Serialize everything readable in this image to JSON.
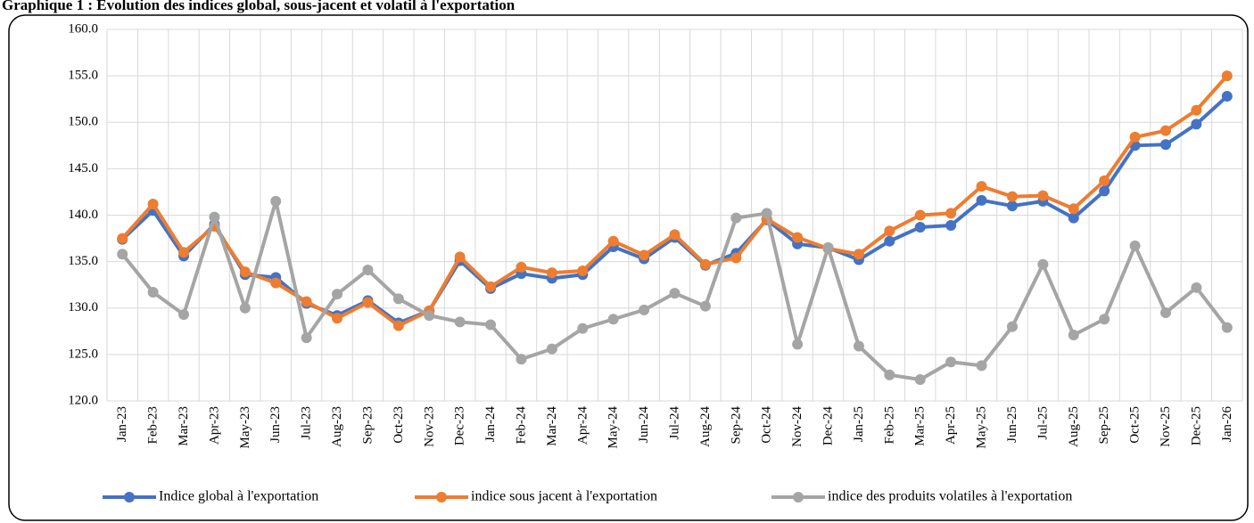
{
  "chart_data": {
    "type": "line",
    "title": "Graphique 1 : Evolution des indices global, sous-jacent et volatil à l'exportation",
    "categories": [
      "Jan-23",
      "Feb-23",
      "Mar-23",
      "Apr-23",
      "May-23",
      "Jun-23",
      "Jul-23",
      "Aug-23",
      "Sep-23",
      "Oct-23",
      "Nov-23",
      "Dec-23",
      "Jan-24",
      "Feb-24",
      "Mar-24",
      "Apr-24",
      "May-24",
      "Jun-24",
      "Jul-24",
      "Aug-24",
      "Sep-24",
      "Oct-24",
      "Nov-24",
      "Dec-24",
      "Jan-25",
      "Feb-25",
      "Mar-25",
      "Apr-25",
      "May-25",
      "Jun-25",
      "Jul-25",
      "Aug-25",
      "Sep-25",
      "Oct-25",
      "Nov-25",
      "Dec-25",
      "Jan-26"
    ],
    "series": [
      {
        "name": "Indice global à l'exportation",
        "color": "#4472c4",
        "values": [
          137.4,
          140.5,
          135.6,
          139.0,
          133.6,
          133.3,
          130.5,
          129.2,
          130.8,
          128.4,
          129.7,
          135.1,
          132.1,
          133.7,
          133.2,
          133.6,
          136.6,
          135.3,
          137.6,
          134.6,
          135.9,
          139.5,
          136.9,
          136.5,
          135.2,
          137.2,
          138.7,
          138.9,
          141.6,
          141.0,
          141.5,
          139.7,
          142.6,
          147.5,
          147.6,
          149.8,
          152.8
        ]
      },
      {
        "name": "indice sous jacent à l'exportation",
        "color": "#ed7d31",
        "values": [
          137.5,
          141.2,
          136.0,
          138.8,
          133.9,
          132.7,
          130.7,
          128.9,
          130.6,
          128.1,
          129.7,
          135.5,
          132.3,
          134.4,
          133.8,
          134.0,
          137.2,
          135.7,
          137.9,
          134.7,
          135.4,
          139.6,
          137.6,
          136.4,
          135.8,
          138.3,
          140.0,
          140.2,
          143.1,
          142.0,
          142.1,
          140.7,
          143.7,
          148.4,
          149.1,
          151.3,
          155.0
        ]
      },
      {
        "name": "indice des produits volatiles à l'exportation",
        "color": "#a5a5a5",
        "values": [
          135.8,
          131.7,
          129.3,
          139.8,
          130.0,
          141.5,
          126.8,
          131.5,
          134.1,
          131.0,
          129.2,
          128.5,
          128.2,
          124.5,
          125.6,
          127.8,
          128.8,
          129.8,
          131.6,
          130.2,
          139.7,
          140.2,
          126.1,
          136.5,
          125.9,
          122.8,
          122.3,
          124.2,
          123.8,
          128.0,
          134.7,
          127.1,
          128.8,
          136.7,
          129.5,
          132.2,
          127.9
        ]
      }
    ],
    "ylim": [
      120,
      160
    ],
    "yticks": [
      {
        "value": 120,
        "label": "120.0"
      },
      {
        "value": 125,
        "label": "125.0"
      },
      {
        "value": 130,
        "label": "130.0"
      },
      {
        "value": 135,
        "label": "135.0"
      },
      {
        "value": 140,
        "label": "140.0"
      },
      {
        "value": 145,
        "label": "145.0"
      },
      {
        "value": 150,
        "label": "150.0"
      },
      {
        "value": 155,
        "label": "155.0"
      },
      {
        "value": 160,
        "label": "160.0"
      }
    ],
    "grid": true,
    "legend": "bottom"
  }
}
